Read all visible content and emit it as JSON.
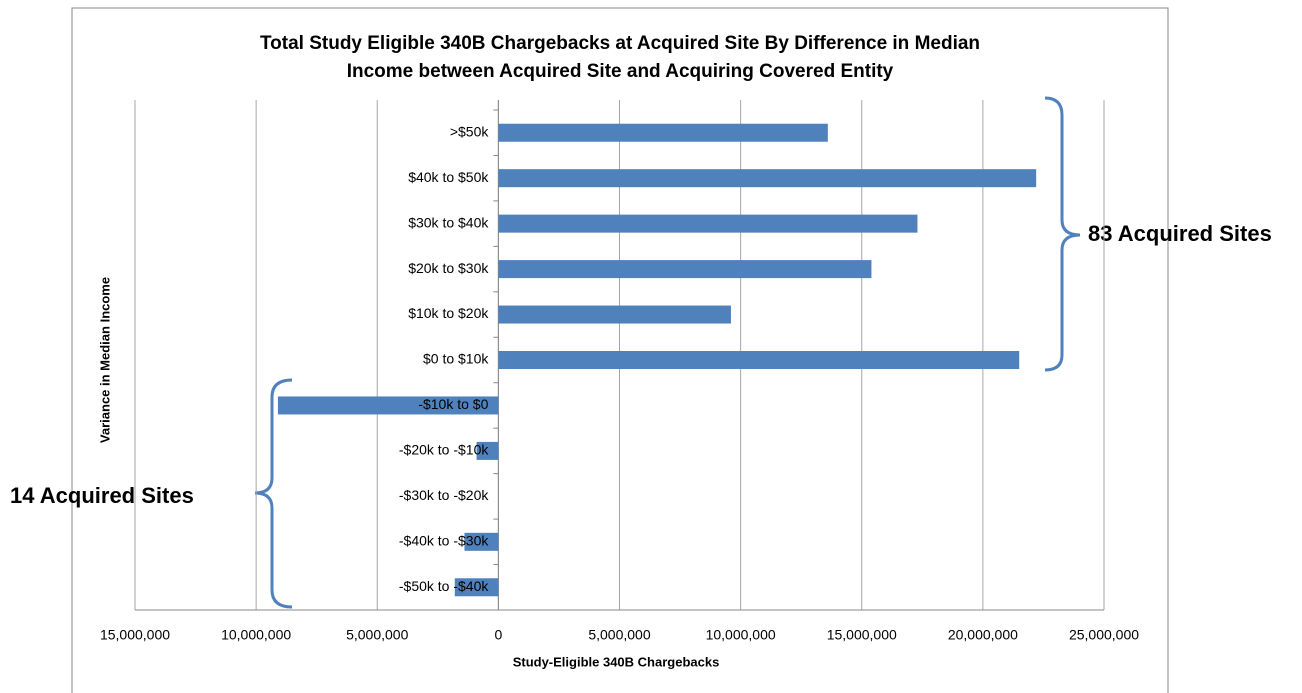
{
  "chart_data": {
    "type": "hbar",
    "title": [
      "Total Study Eligible 340B Chargebacks at Acquired Site By Difference in Median",
      "Income between Acquired Site and Acquiring Covered Entity"
    ],
    "x_label": "Study-Eligible  340B Chargebacks",
    "y_label": "Variance in Median Income",
    "categories": [
      ">$50k",
      "$40k to $50k",
      "$30k to $40k",
      "$20k to $30k",
      "$10k to $20k",
      "$0 to $10k",
      "-$10k to $0",
      "-$20k to -$10k",
      "-$30k to -$20k",
      "-$40k to -$30k",
      "-$50k to -$40k"
    ],
    "values": [
      13600000,
      22200000,
      17300000,
      15400000,
      9600000,
      21500000,
      -9100000,
      -900000,
      0,
      -1400000,
      -1800000
    ],
    "color": "#4f81bd",
    "xlim": [
      -15000000,
      25000000
    ],
    "xticks": [
      {
        "value": -15000000,
        "label": "15,000,000"
      },
      {
        "value": -10000000,
        "label": "10,000,000"
      },
      {
        "value": -5000000,
        "label": "5,000,000"
      },
      0,
      {
        "value": 5000000,
        "label": "5,000,000"
      },
      {
        "value": 10000000,
        "label": "10,000,000"
      },
      {
        "value": 15000000,
        "label": "15,000,000"
      },
      {
        "value": 20000000,
        "label": "20,000,000"
      },
      {
        "value": 25000000,
        "label": "25,000,000"
      }
    ],
    "grid": true,
    "annotations": [
      "83 Acquired Sites",
      "14 Acquired Sites"
    ]
  }
}
